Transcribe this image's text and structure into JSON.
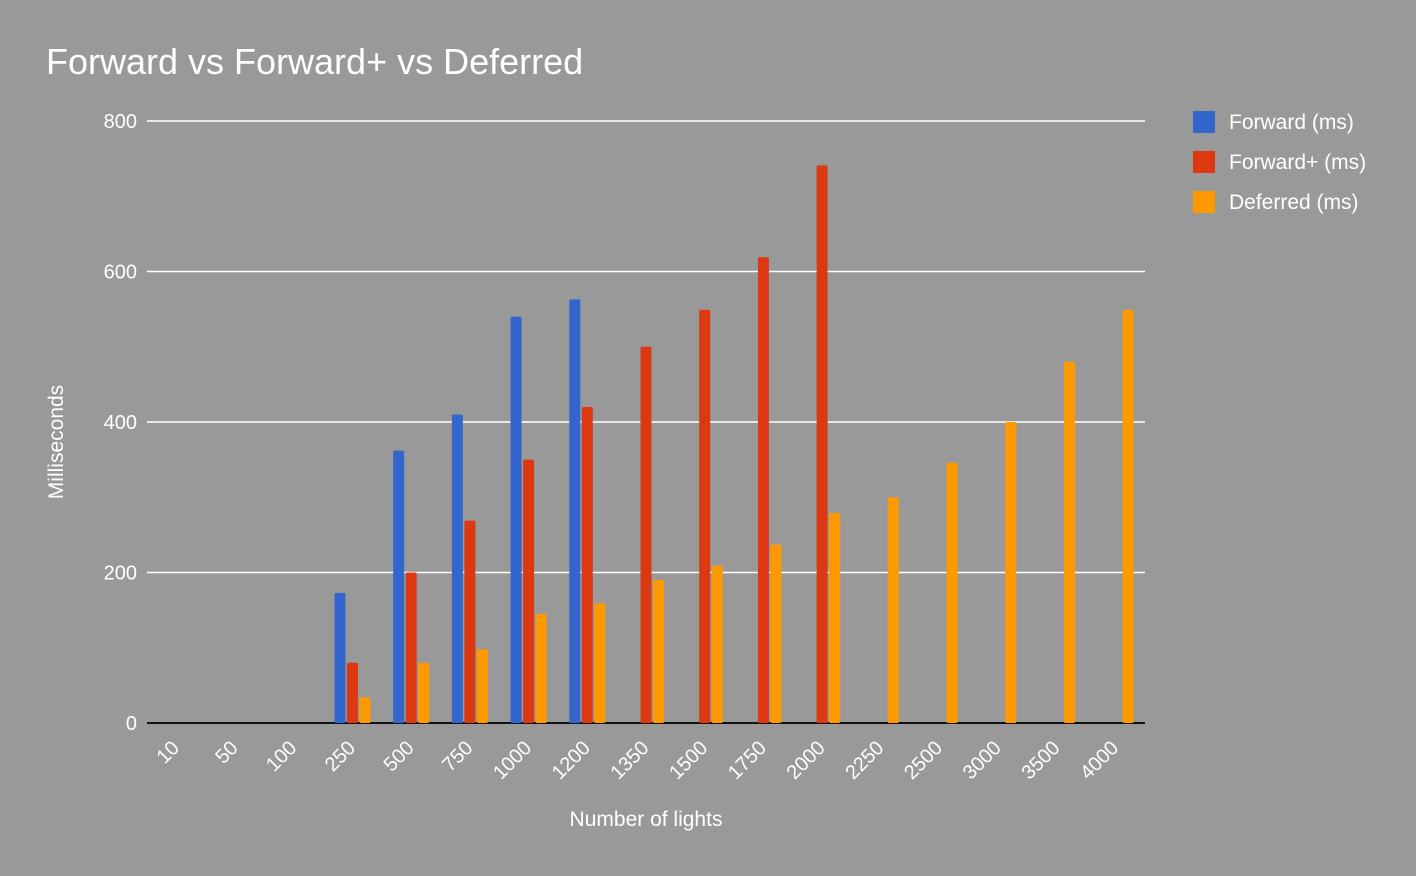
{
  "chart_data": {
    "type": "bar",
    "title": "Forward vs Forward+ vs Deferred",
    "xlabel": "Number of lights",
    "ylabel": "Milliseconds",
    "ylim": [
      0,
      800
    ],
    "yticks": [
      "0",
      "200",
      "400",
      "600",
      "800"
    ],
    "categories": [
      "10",
      "50",
      "100",
      "250",
      "500",
      "750",
      "1000",
      "1200",
      "1350",
      "1500",
      "1750",
      "2000",
      "2250",
      "2500",
      "3000",
      "3500",
      "4000"
    ],
    "series": [
      {
        "name": "Forward (ms)",
        "color": "#3366cc",
        "values": [
          null,
          null,
          null,
          173,
          362,
          410,
          540,
          563,
          null,
          null,
          null,
          null,
          null,
          null,
          null,
          null,
          null
        ]
      },
      {
        "name": "Forward+ (ms)",
        "color": "#dc3912",
        "values": [
          null,
          null,
          null,
          80,
          200,
          269,
          350,
          420,
          500,
          549,
          619,
          741,
          null,
          null,
          null,
          null,
          null
        ]
      },
      {
        "name": "Deferred (ms)",
        "color": "#ff9900",
        "values": [
          null,
          null,
          null,
          34,
          80,
          98,
          145,
          159,
          190,
          209,
          237,
          279,
          300,
          346,
          400,
          480,
          549
        ]
      }
    ],
    "grid": true,
    "legend_position": "right"
  }
}
